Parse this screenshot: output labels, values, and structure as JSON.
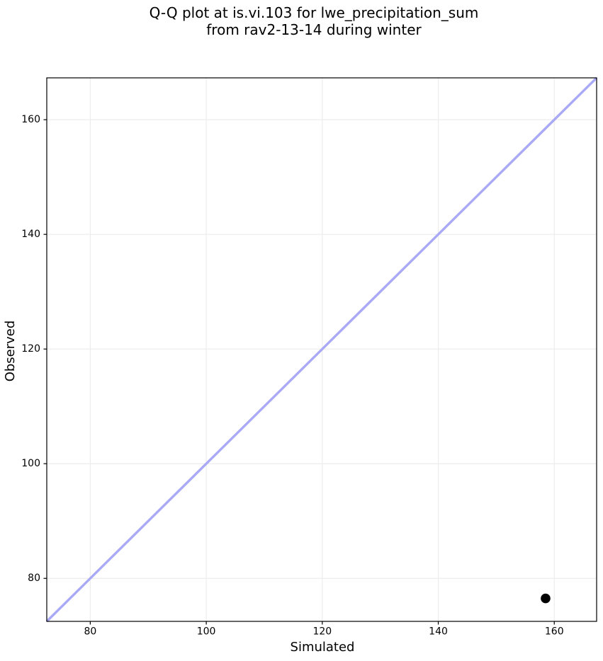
{
  "chart_data": {
    "type": "scatter",
    "title_line1": "Q-Q plot at is.vi.103 for lwe_precipitation_sum",
    "title_line2": "from rav2-13-14 during winter",
    "xlabel": "Simulated",
    "ylabel": "Observed",
    "xlim": [
      72.5,
      167.3
    ],
    "ylim": [
      72.5,
      167.3
    ],
    "xticks": [
      80,
      100,
      120,
      140,
      160
    ],
    "yticks": [
      80,
      100,
      120,
      140,
      160
    ],
    "grid": true,
    "legend": "none",
    "points": [
      {
        "simulated": 158.5,
        "observed": 76.5
      }
    ],
    "identity_line": {
      "x1": 72.5,
      "y1": 72.5,
      "x2": 167.3,
      "y2": 167.3
    },
    "colors": {
      "identity_line": "#a9a9f5",
      "point": "#000000",
      "grid": "#ececec",
      "spine": "#000000",
      "text": "#000000"
    }
  }
}
